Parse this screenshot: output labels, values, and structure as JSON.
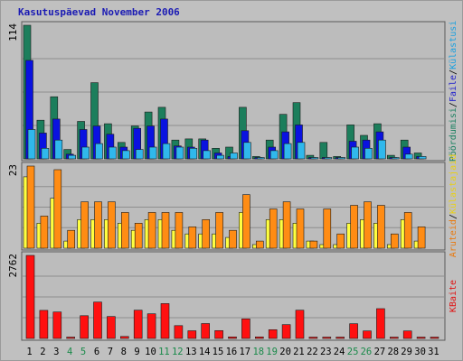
{
  "chart_data": {
    "type": "bar",
    "title": "Kasutuspäevad November 2006",
    "days": [
      "1",
      "2",
      "3",
      "4",
      "5",
      "6",
      "7",
      "8",
      "9",
      "10",
      "11",
      "12",
      "13",
      "14",
      "15",
      "16",
      "17",
      "18",
      "19",
      "20",
      "21",
      "22",
      "23",
      "24",
      "25",
      "26",
      "27",
      "28",
      "29",
      "30",
      "31"
    ],
    "weekend_days": [
      "4",
      "5",
      "11",
      "12",
      "18",
      "19",
      "25",
      "26"
    ],
    "panels": [
      {
        "axis_max_label": "114",
        "ylim": [
          0,
          114
        ],
        "legend": [
          {
            "text": "Pöördumisi",
            "color": "#1a8060"
          },
          {
            "sep": "/"
          },
          {
            "text": "Faile",
            "color": "#2222cc"
          },
          {
            "sep": "/"
          },
          {
            "text": "Külastusi",
            "color": "#1aa0e0"
          }
        ],
        "series": [
          {
            "name": "Pöördumisi",
            "color": "#1c7e5c",
            "values": [
              114,
              33,
              53,
              8,
              32,
              65,
              30,
              14,
              28,
              40,
              44,
              16,
              17,
              17,
              9,
              10,
              44,
              2,
              16,
              38,
              48,
              3,
              14,
              2,
              29,
              20,
              30,
              3,
              16,
              5,
              0
            ]
          },
          {
            "name": "Faile",
            "color": "#0a12e0",
            "values": [
              84,
              22,
              34,
              4,
              25,
              28,
              21,
              10,
              26,
              28,
              34,
              11,
              10,
              16,
              5,
              2,
              24,
              1,
              10,
              23,
              29,
              1,
              1,
              1,
              15,
              16,
              23,
              1,
              10,
              2,
              0
            ]
          },
          {
            "name": "Külastusi",
            "color": "#30b8ec",
            "values": [
              25,
              9,
              16,
              3,
              10,
              13,
              10,
              7,
              8,
              10,
              13,
              10,
              9,
              7,
              3,
              5,
              14,
              1,
              7,
              13,
              14,
              1,
              1,
              1,
              10,
              9,
              16,
              1,
              4,
              2,
              0
            ]
          }
        ]
      },
      {
        "axis_max_label": "23",
        "ylim": [
          0,
          23
        ],
        "legend": [
          {
            "text": "Aruteid",
            "color": "#e87a10"
          },
          {
            "sep": "/"
          },
          {
            "text": "Külastajaid",
            "color": "#e8d018"
          }
        ],
        "series": [
          {
            "name": "Külastajaid",
            "color": "#ffff40",
            "values": [
              20,
              7,
              14,
              2,
              8,
              8,
              8,
              7,
              5,
              8,
              8,
              5,
              4,
              4,
              4,
              3,
              10,
              1,
              8,
              8,
              7,
              2,
              1,
              1,
              7,
              8,
              7,
              1,
              8,
              2,
              0
            ]
          },
          {
            "name": "Aruteid",
            "color": "#ff8c14",
            "values": [
              23,
              9,
              22,
              5,
              13,
              13,
              13,
              10,
              7,
              10,
              10,
              10,
              6,
              8,
              10,
              5,
              15,
              2,
              11,
              13,
              11,
              2,
              11,
              4,
              12,
              13,
              12,
              4,
              10,
              6,
              0
            ]
          }
        ]
      },
      {
        "axis_max_label": "2762",
        "ylim": [
          0,
          2762
        ],
        "legend": [
          {
            "text": "KBaite",
            "color": "#e01010"
          }
        ],
        "series": [
          {
            "name": "KBaite",
            "color": "#ff1010",
            "values": [
              2762,
              935,
              880,
              30,
              758,
              1210,
              730,
              65,
              940,
              820,
              1160,
              425,
              255,
              495,
              260,
              50,
              650,
              50,
              290,
              460,
              940,
              40,
              40,
              40,
              490,
              250,
              990,
              40,
              250,
              40,
              10
            ]
          }
        ]
      }
    ]
  }
}
